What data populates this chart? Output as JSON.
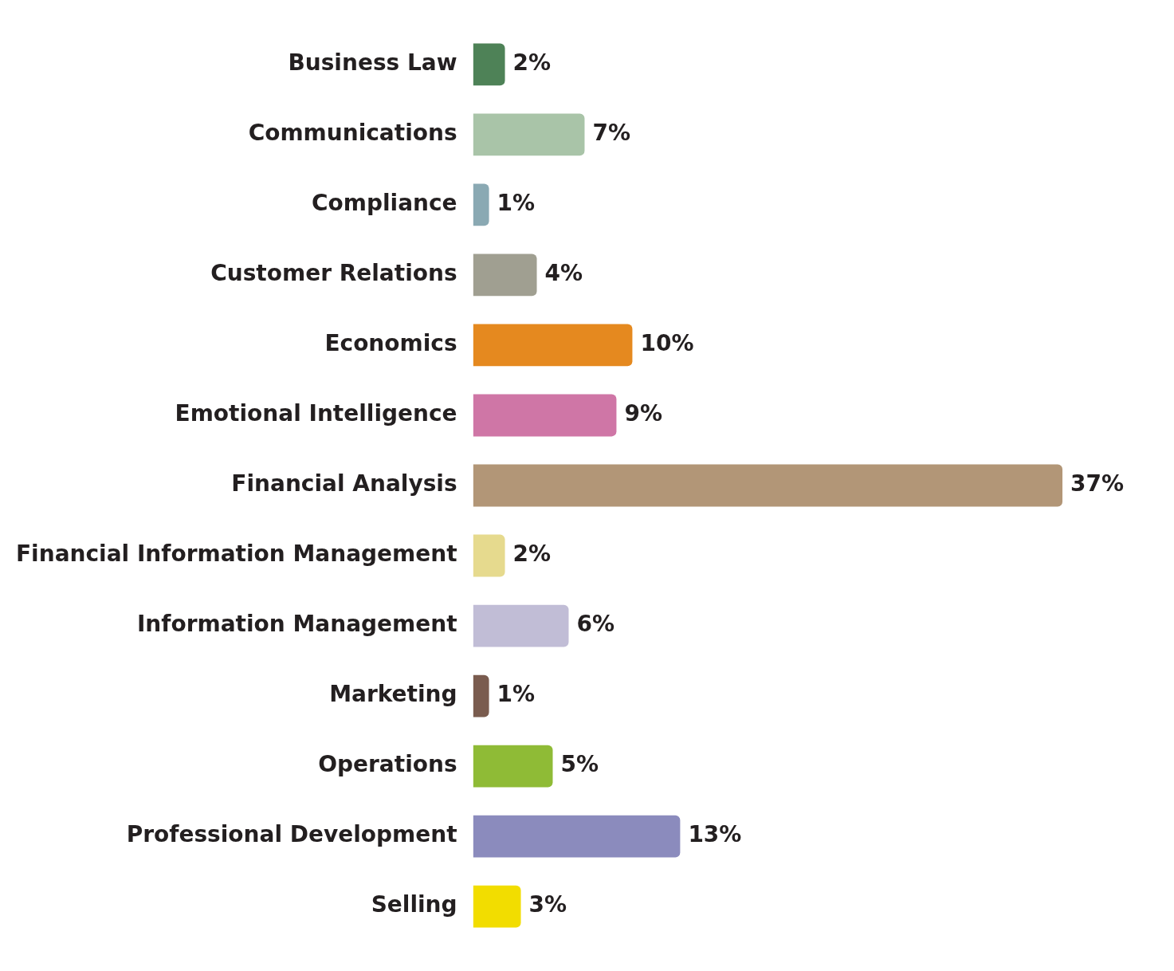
{
  "chart_data": {
    "type": "bar",
    "orientation": "horizontal",
    "categories": [
      "Business Law",
      "Communications",
      "Compliance",
      "Customer Relations",
      "Economics",
      "Emotional Intelligence",
      "Financial Analysis",
      "Financial Information Management",
      "Information Management",
      "Marketing",
      "Operations",
      "Professional Development",
      "Selling"
    ],
    "values": [
      2,
      7,
      1,
      4,
      10,
      9,
      37,
      2,
      6,
      1,
      5,
      13,
      3
    ],
    "value_labels": [
      "2%",
      "7%",
      "1%",
      "4%",
      "10%",
      "9%",
      "37%",
      "2%",
      "6%",
      "1%",
      "5%",
      "13%",
      "3%"
    ],
    "colors": [
      "#4e8257",
      "#a9c4a8",
      "#8aa9b3",
      "#a09f91",
      "#e5891f",
      "#cf76a6",
      "#b29677",
      "#e6da8e",
      "#c1bdd6",
      "#7a5c4f",
      "#8fbb36",
      "#8b8bbd",
      "#f2dd00"
    ],
    "grid": false,
    "legend": false,
    "tick_labels": "y"
  }
}
